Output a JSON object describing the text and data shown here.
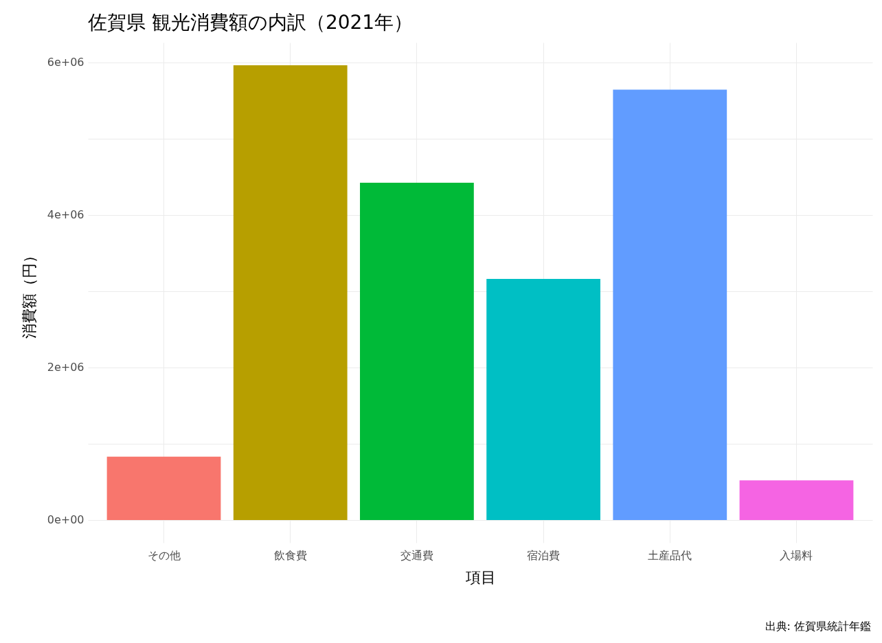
{
  "chart_data": {
    "type": "bar",
    "title": "佐賀県 観光消費額の内訳（2021年）",
    "xlabel": "項目",
    "ylabel": "消費額（円）",
    "categories": [
      "その他",
      "飲食費",
      "交通費",
      "宿泊費",
      "土産品代",
      "入場料"
    ],
    "values": [
      830000,
      5960000,
      4420000,
      3160000,
      5640000,
      520000
    ],
    "colors": [
      "#f8766d",
      "#b79f00",
      "#00ba38",
      "#00bfc4",
      "#619cff",
      "#f564e3"
    ],
    "ylim": [
      -298000,
      6258000
    ],
    "yticks": [
      {
        "value": 0,
        "label": "0e+00"
      },
      {
        "value": 1000000,
        "label": null
      },
      {
        "value": 2000000,
        "label": "2e+06"
      },
      {
        "value": 3000000,
        "label": null
      },
      {
        "value": 4000000,
        "label": "4e+06"
      },
      {
        "value": 5000000,
        "label": null
      },
      {
        "value": 6000000,
        "label": "6e+06"
      }
    ],
    "grid": true,
    "legend": false,
    "annotations": [
      "出典: 佐賀県統計年鑑"
    ]
  }
}
